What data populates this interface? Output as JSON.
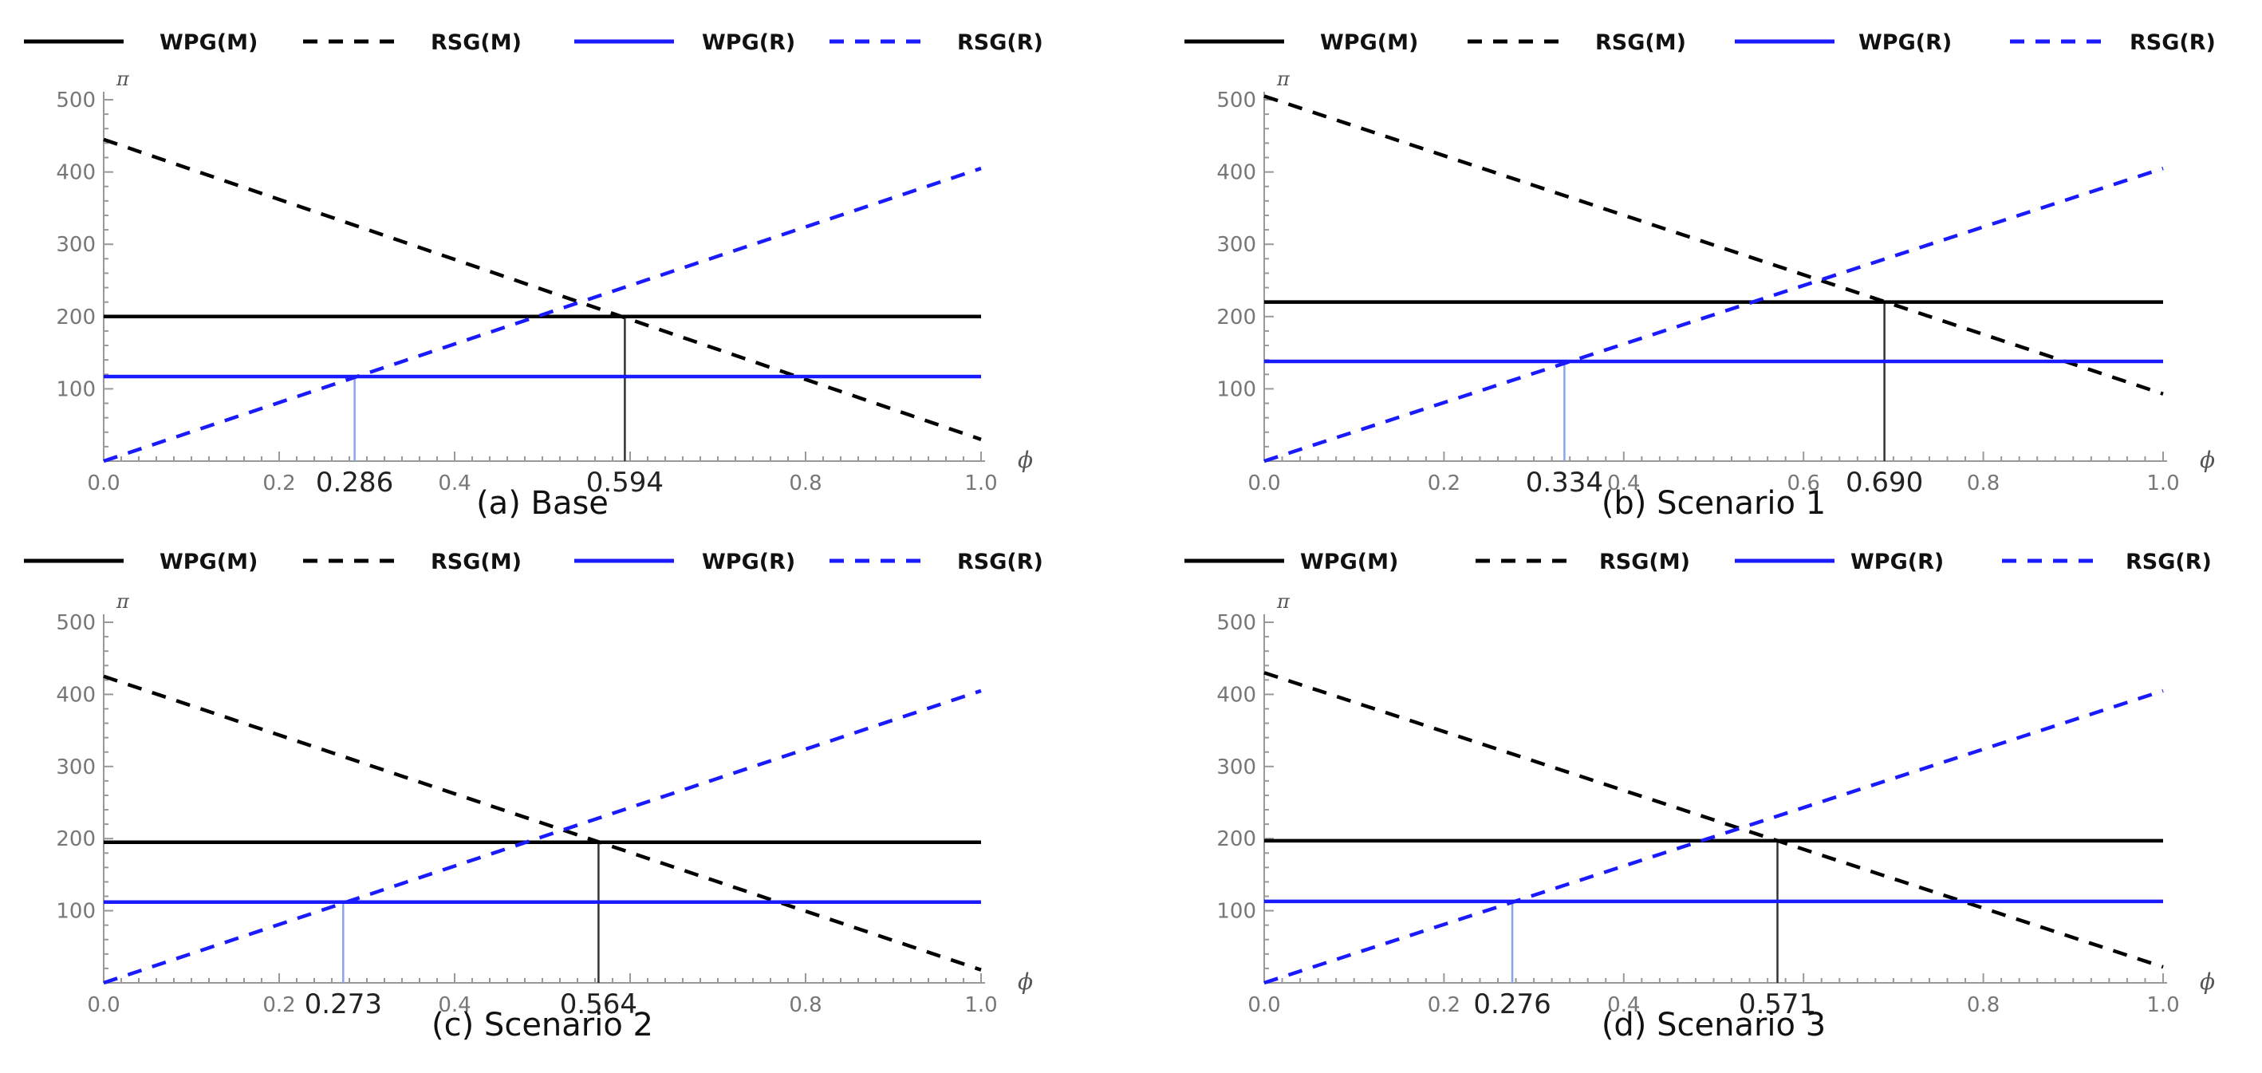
{
  "chart_data": [
    {
      "type": "line",
      "title": "(a) Base",
      "xlabel": "ϕ",
      "ylabel": "π",
      "xlim": [
        0,
        1
      ],
      "ylim": [
        0,
        500
      ],
      "xticks": [
        "0.0",
        "0.2",
        "0.4",
        "0.6",
        "0.8",
        "1.0"
      ],
      "yticks": [
        "100",
        "200",
        "300",
        "400",
        "500"
      ],
      "legend": [
        "WPG(M)",
        "RSG(M)",
        "WPG(R)",
        "RSG(R)"
      ],
      "series": [
        {
          "name": "WPG(M)",
          "style": "solid",
          "color": "#000000",
          "x": [
            0,
            1
          ],
          "y": [
            200,
            200
          ]
        },
        {
          "name": "RSG(M)",
          "style": "dashed",
          "color": "#000000",
          "x": [
            0,
            1
          ],
          "y": [
            445,
            30
          ]
        },
        {
          "name": "WPG(R)",
          "style": "solid",
          "color": "#1a1aff",
          "x": [
            0,
            1
          ],
          "y": [
            117,
            117
          ]
        },
        {
          "name": "RSG(R)",
          "style": "dashed",
          "color": "#1a1aff",
          "x": [
            0,
            1
          ],
          "y": [
            0,
            405
          ]
        }
      ],
      "critical_points": [
        {
          "label": "0.286",
          "x": 0.286,
          "y": 117,
          "color": "#8aa4e8"
        },
        {
          "label": "0.594",
          "x": 0.594,
          "y": 200,
          "color": "#333333"
        }
      ],
      "hidden_xticks": [
        "0.6"
      ]
    },
    {
      "type": "line",
      "title": "(b) Scenario 1",
      "xlabel": "ϕ",
      "ylabel": "π",
      "xlim": [
        0,
        1
      ],
      "ylim": [
        0,
        500
      ],
      "xticks": [
        "0.0",
        "0.2",
        "0.4",
        "0.6",
        "0.8",
        "1.0"
      ],
      "yticks": [
        "100",
        "200",
        "300",
        "400",
        "500"
      ],
      "legend": [
        "WPG(M)",
        "RSG(M)",
        "WPG(R)",
        "RSG(R)"
      ],
      "series": [
        {
          "name": "WPG(M)",
          "style": "solid",
          "color": "#000000",
          "x": [
            0,
            1
          ],
          "y": [
            220,
            220
          ]
        },
        {
          "name": "RSG(M)",
          "style": "dashed",
          "color": "#000000",
          "x": [
            0,
            1
          ],
          "y": [
            505,
            93
          ]
        },
        {
          "name": "WPG(R)",
          "style": "solid",
          "color": "#1a1aff",
          "x": [
            0,
            1
          ],
          "y": [
            138,
            138
          ]
        },
        {
          "name": "RSG(R)",
          "style": "dashed",
          "color": "#1a1aff",
          "x": [
            0,
            1
          ],
          "y": [
            0,
            405
          ]
        }
      ],
      "critical_points": [
        {
          "label": "0.334",
          "x": 0.334,
          "y": 138,
          "color": "#8aa4e8"
        },
        {
          "label": "0.690",
          "x": 0.69,
          "y": 220,
          "color": "#333333"
        }
      ],
      "hidden_xticks": []
    },
    {
      "type": "line",
      "title": "(c) Scenario 2",
      "xlabel": "ϕ",
      "ylabel": "π",
      "xlim": [
        0,
        1
      ],
      "ylim": [
        0,
        500
      ],
      "xticks": [
        "0.0",
        "0.2",
        "0.4",
        "0.6",
        "0.8",
        "1.0"
      ],
      "yticks": [
        "100",
        "200",
        "300",
        "400",
        "500"
      ],
      "legend": [
        "WPG(M)",
        "RSG(M)",
        "WPG(R)",
        "RSG(R)"
      ],
      "series": [
        {
          "name": "WPG(M)",
          "style": "solid",
          "color": "#000000",
          "x": [
            0,
            1
          ],
          "y": [
            195,
            195
          ]
        },
        {
          "name": "RSG(M)",
          "style": "dashed",
          "color": "#000000",
          "x": [
            0,
            1
          ],
          "y": [
            425,
            18
          ]
        },
        {
          "name": "WPG(R)",
          "style": "solid",
          "color": "#1a1aff",
          "x": [
            0,
            1
          ],
          "y": [
            112,
            112
          ]
        },
        {
          "name": "RSG(R)",
          "style": "dashed",
          "color": "#1a1aff",
          "x": [
            0,
            1
          ],
          "y": [
            0,
            405
          ]
        }
      ],
      "critical_points": [
        {
          "label": "0.273",
          "x": 0.273,
          "y": 112,
          "color": "#8aa4e8"
        },
        {
          "label": "0.564",
          "x": 0.564,
          "y": 195,
          "color": "#333333"
        }
      ],
      "hidden_xticks": [
        "0.6"
      ]
    },
    {
      "type": "line",
      "title": "(d) Scenario 3",
      "xlabel": "ϕ",
      "ylabel": "π",
      "xlim": [
        0,
        1
      ],
      "ylim": [
        0,
        500
      ],
      "xticks": [
        "0.0",
        "0.2",
        "0.4",
        "0.6",
        "0.8",
        "1.0"
      ],
      "yticks": [
        "100",
        "200",
        "300",
        "400",
        "500"
      ],
      "legend": [
        "WPG(M)",
        "RSG(M)",
        "WPG(R)",
        "RSG(R)"
      ],
      "series": [
        {
          "name": "WPG(M)",
          "style": "solid",
          "color": "#000000",
          "x": [
            0,
            1
          ],
          "y": [
            197,
            197
          ]
        },
        {
          "name": "RSG(M)",
          "style": "dashed",
          "color": "#000000",
          "x": [
            0,
            1
          ],
          "y": [
            430,
            22
          ]
        },
        {
          "name": "WPG(R)",
          "style": "solid",
          "color": "#1a1aff",
          "x": [
            0,
            1
          ],
          "y": [
            113,
            113
          ]
        },
        {
          "name": "RSG(R)",
          "style": "dashed",
          "color": "#1a1aff",
          "x": [
            0,
            1
          ],
          "y": [
            0,
            405
          ]
        }
      ],
      "critical_points": [
        {
          "label": "0.276",
          "x": 0.276,
          "y": 113,
          "color": "#8aa4e8"
        },
        {
          "label": "0.571",
          "x": 0.571,
          "y": 197,
          "color": "#333333"
        }
      ],
      "hidden_xticks": [
        "0.6"
      ]
    }
  ]
}
